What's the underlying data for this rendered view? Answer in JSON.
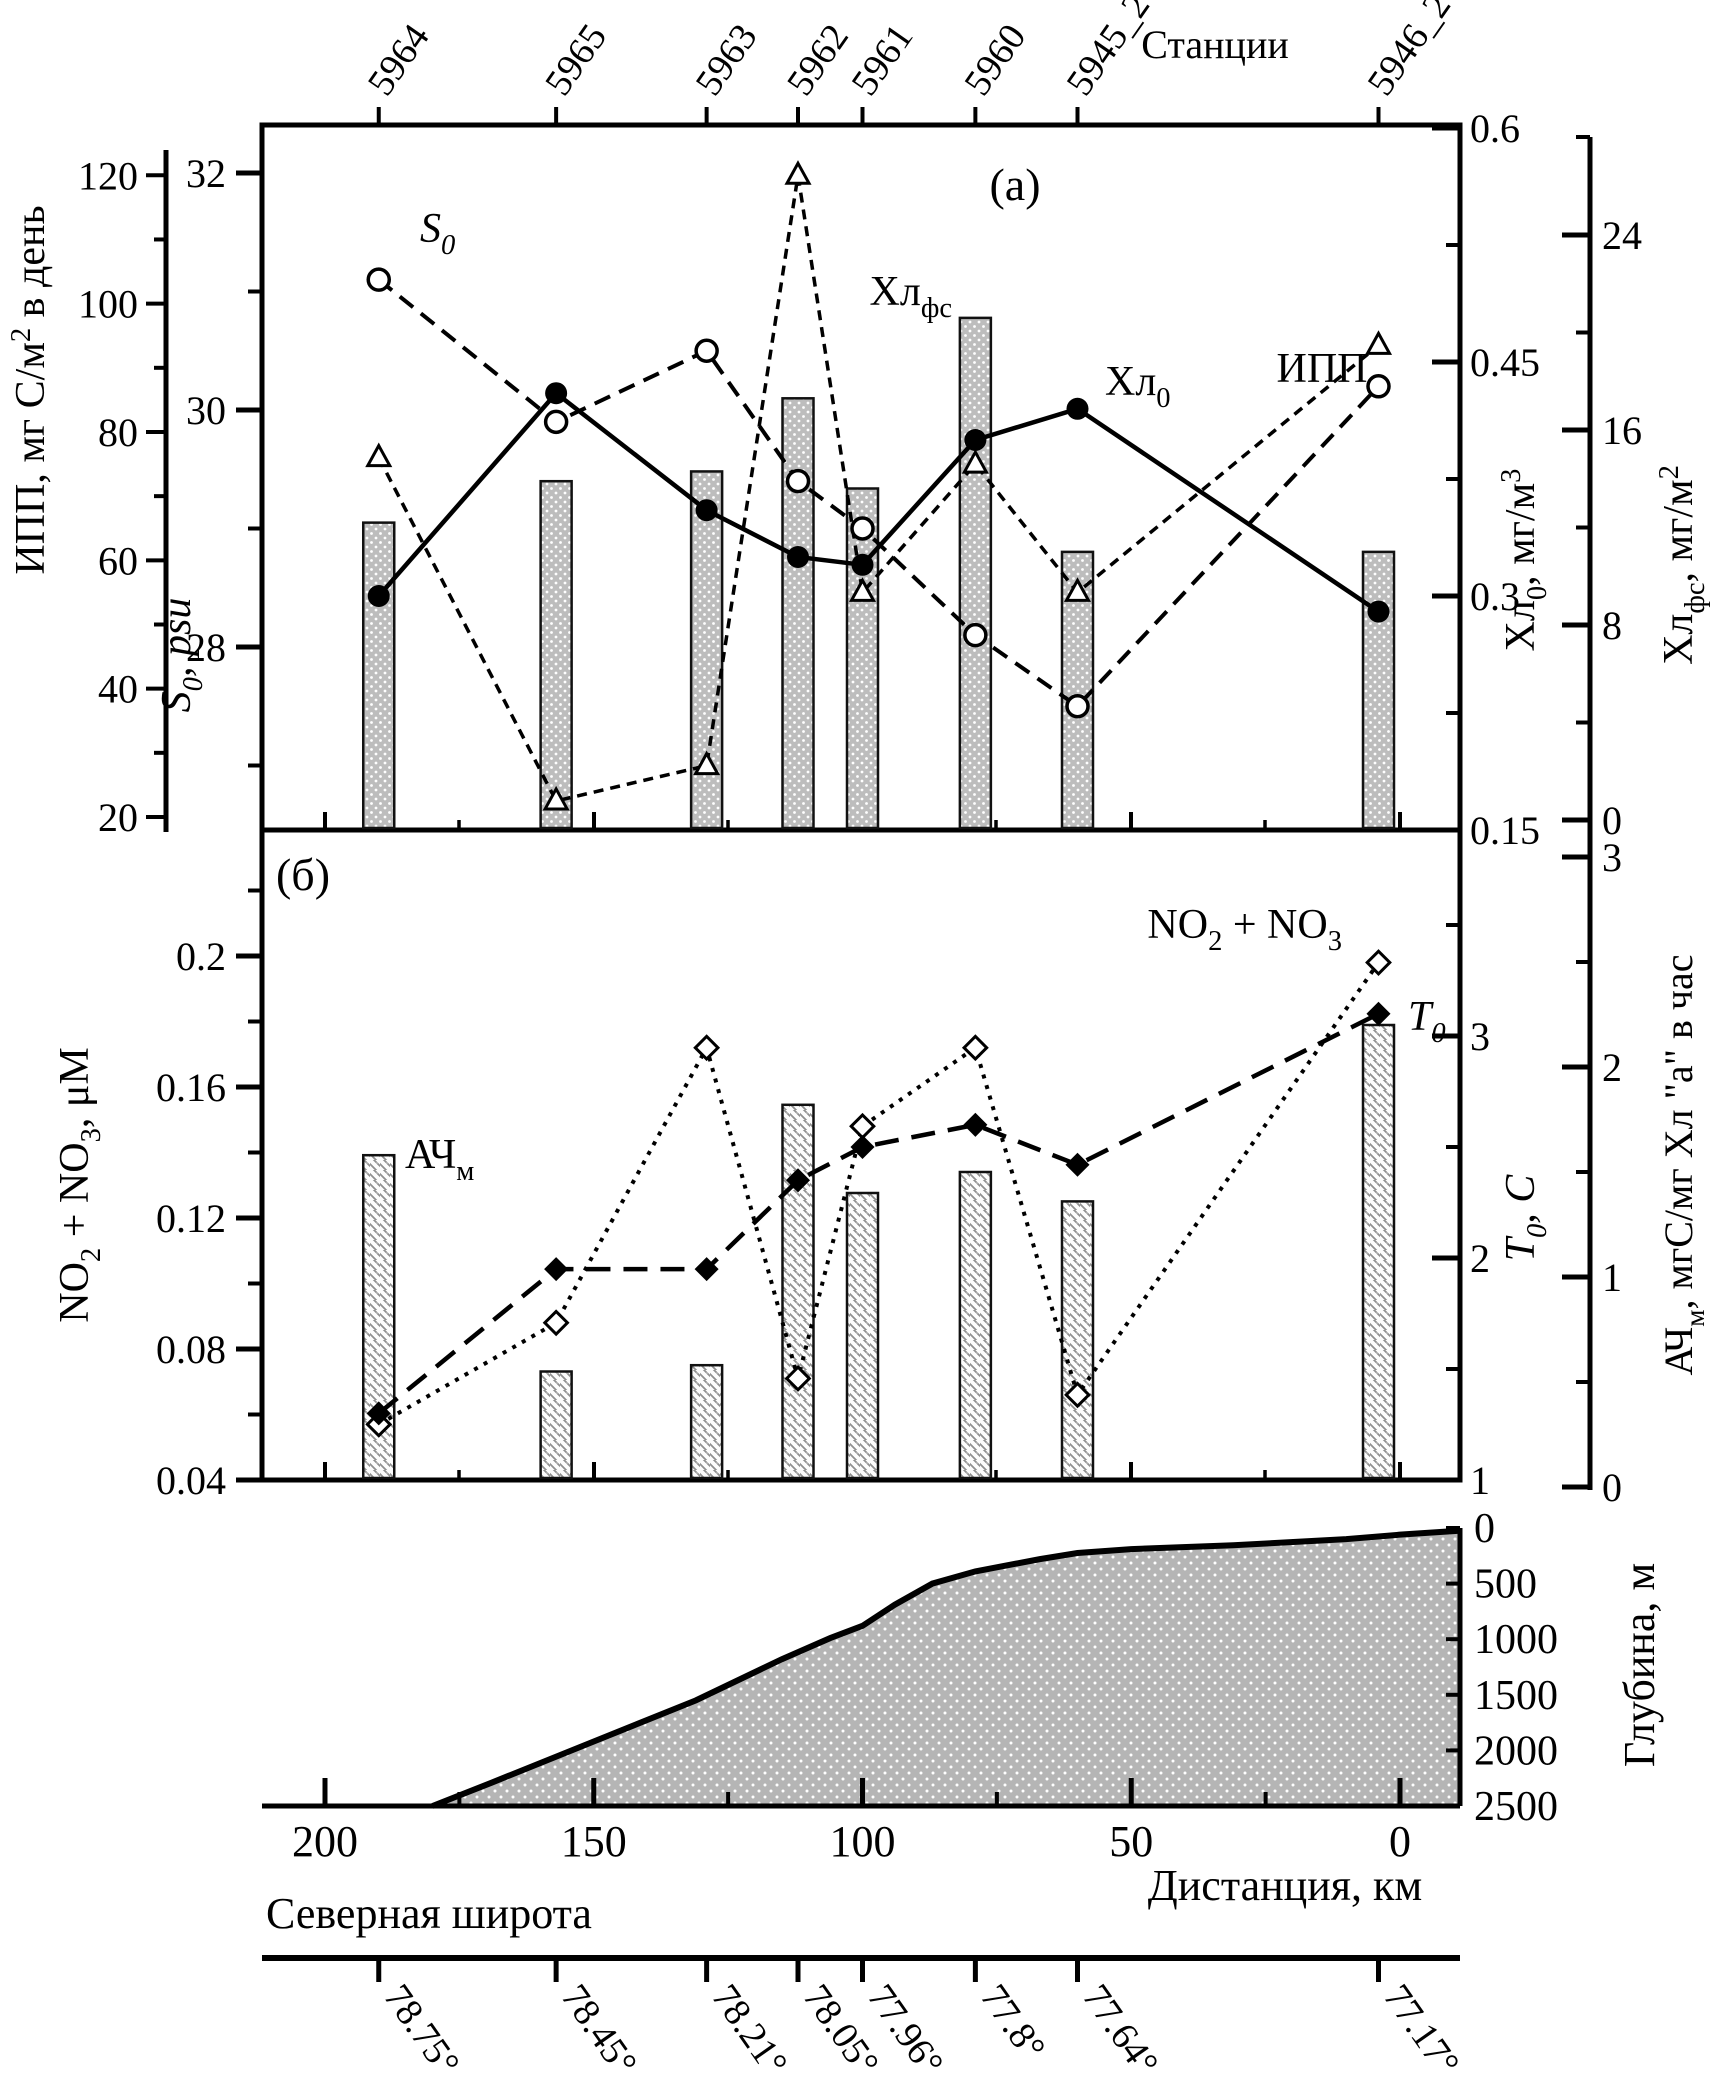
{
  "panels": {
    "a_label": "(a)",
    "b_label": "(б)"
  },
  "top_axis": {
    "title": "Станции",
    "stations": [
      "5964",
      "5965",
      "5963",
      "5962",
      "5961",
      "5960",
      "5945_2",
      "5946_2"
    ]
  },
  "axes": {
    "ipp": {
      "title": "ИПП, мг С/м{^2} в день",
      "ticks": [
        "120",
        "100",
        "80",
        "60",
        "40",
        "20"
      ]
    },
    "s0": {
      "title": "S{0}, psu",
      "ticks": [
        "32",
        "30",
        "28"
      ]
    },
    "chl0": {
      "title": "Хл{0}, мг/м{^3}",
      "ticks": [
        "0.6",
        "0.45",
        "0.3",
        "0.15"
      ]
    },
    "chlfs": {
      "title": "Хл{фс}, мг/м{^2}",
      "ticks": [
        "24",
        "16",
        "8",
        "0"
      ]
    },
    "no23": {
      "title": "NO{2} + NO{3}, μМ",
      "ticks": [
        "0.2",
        "0.16",
        "0.12",
        "0.08",
        "0.04"
      ]
    },
    "t0": {
      "title": "T{0}, C",
      "ticks": [
        "3",
        "2",
        "1"
      ]
    },
    "ach": {
      "title": "АЧ{м}, мгС/мг Хл \"а\" в час",
      "ticks": [
        "3",
        "2",
        "1",
        "0"
      ]
    },
    "depth": {
      "title": "Глубина, м",
      "ticks": [
        "0",
        "500",
        "1000",
        "1500",
        "2000",
        "2500"
      ]
    },
    "distance": {
      "title": "Дистанция, км",
      "ticks": [
        "200",
        "150",
        "100",
        "50",
        "0"
      ]
    },
    "latitude": {
      "title": "Северная широта",
      "labels": [
        "78.75°",
        "78.45°",
        "78.21°",
        "78.05°",
        "77.96°",
        "77.8°",
        "77.64°",
        "77.17°"
      ]
    }
  },
  "annotations": {
    "s0": "S{0}",
    "chl0": "Хл{0}",
    "chlfs": "Хл{фс}",
    "ipp": "ИПП",
    "no23": "NO{2} + NO{3}",
    "t0": "T{0}",
    "ach": "АЧ{м}"
  },
  "chart_data": [
    {
      "type": "bar",
      "panel": "a",
      "categories": [
        "5964",
        "5965",
        "5963",
        "5962",
        "5961",
        "5960",
        "5945_2",
        "5946_2"
      ],
      "station_km": [
        190,
        157,
        129,
        112,
        100,
        79,
        60,
        4
      ],
      "axis_ranges": {
        "ipp": [
          20,
          120
        ],
        "s0": [
          28,
          32
        ],
        "chl0": [
          0.15,
          0.6
        ],
        "chlfs": [
          0,
          24
        ]
      },
      "series": [
        {
          "name": "Хл_фс",
          "type": "bar",
          "axis": "chlfs",
          "values": [
            12.2,
            13.9,
            14.3,
            17.3,
            13.6,
            20.6,
            11.0,
            11.0
          ]
        },
        {
          "name": "ИПП",
          "type": "line",
          "marker": "triangle-open",
          "dash": "short",
          "axis": "ipp",
          "values": [
            76,
            22.5,
            28,
            120,
            55,
            75,
            55,
            93.5
          ]
        },
        {
          "name": "S0",
          "type": "line",
          "marker": "circle-open",
          "dash": "long",
          "axis": "s0",
          "values": [
            31.1,
            29.9,
            30.5,
            29.4,
            29.0,
            28.1,
            27.5,
            30.2
          ]
        },
        {
          "name": "Хл0",
          "type": "line",
          "marker": "circle-filled",
          "dash": "solid",
          "axis": "chl0",
          "values": [
            0.3,
            0.43,
            0.355,
            0.325,
            0.32,
            0.4,
            0.42,
            0.29
          ]
        }
      ]
    },
    {
      "type": "bar",
      "panel": "b",
      "categories": [
        "5964",
        "5965",
        "5963",
        "5962",
        "5961",
        "5960",
        "5945_2",
        "5946_2"
      ],
      "axis_ranges": {
        "no23": [
          0.04,
          0.24
        ],
        "t0": [
          1,
          3.9
        ],
        "ach": [
          0,
          3
        ]
      },
      "series": [
        {
          "name": "АЧ_м",
          "type": "bar",
          "axis": "ach",
          "values": [
            1.58,
            0.55,
            0.58,
            1.82,
            1.4,
            1.5,
            1.36,
            2.2
          ]
        },
        {
          "name": "NO2+NO3",
          "type": "line",
          "marker": "diamond-open",
          "dash": "dot",
          "axis": "no23",
          "values": [
            0.057,
            0.088,
            0.172,
            0.071,
            0.148,
            0.172,
            0.066,
            0.198
          ]
        },
        {
          "name": "T0",
          "type": "line",
          "marker": "diamond-filled",
          "dash": "longdash",
          "axis": "t0",
          "values": [
            1.3,
            1.95,
            1.95,
            2.35,
            2.5,
            2.6,
            2.42,
            3.1
          ]
        }
      ]
    },
    {
      "type": "area",
      "panel": "depth",
      "name": "bathymetry",
      "x_km": [
        180,
        169,
        150,
        131,
        115,
        106,
        100,
        94,
        87,
        79,
        67,
        60,
        50,
        31,
        10,
        0,
        -11
      ],
      "depth_m": [
        2500,
        2290,
        1920,
        1550,
        1180,
        990,
        880,
        690,
        500,
        390,
        280,
        225,
        190,
        155,
        100,
        60,
        25
      ],
      "xlabel": "Дистанция, км",
      "ylabel": "Глубина, м",
      "ylim": [
        0,
        2500
      ]
    }
  ],
  "colors": {
    "ink": "#000000",
    "bar_dot_gray": "#bdbdbd",
    "area_gray": "#b5b5b5",
    "hatch_gray": "#909090"
  }
}
